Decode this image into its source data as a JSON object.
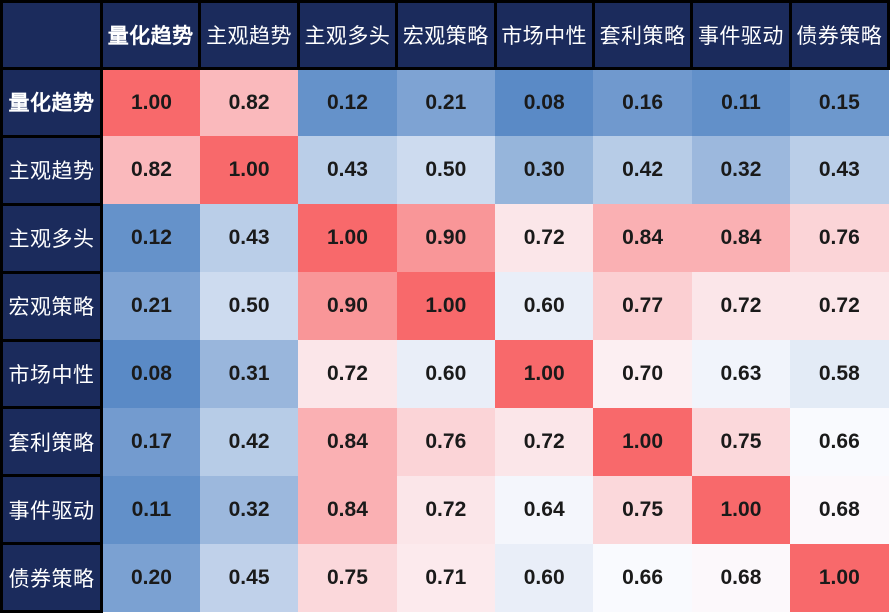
{
  "chart_data": {
    "type": "heatmap",
    "title": "",
    "categories": [
      "量化趋势",
      "主观趋势",
      "主观多头",
      "宏观策略",
      "市场中性",
      "套利策略",
      "事件驱动",
      "债券策略"
    ],
    "matrix": [
      [
        1.0,
        0.82,
        0.12,
        0.21,
        0.08,
        0.16,
        0.11,
        0.15
      ],
      [
        0.82,
        1.0,
        0.43,
        0.5,
        0.3,
        0.42,
        0.32,
        0.43
      ],
      [
        0.12,
        0.43,
        1.0,
        0.9,
        0.72,
        0.84,
        0.84,
        0.76
      ],
      [
        0.21,
        0.5,
        0.9,
        1.0,
        0.6,
        0.77,
        0.72,
        0.72
      ],
      [
        0.08,
        0.31,
        0.72,
        0.6,
        1.0,
        0.7,
        0.63,
        0.58
      ],
      [
        0.17,
        0.42,
        0.84,
        0.76,
        0.72,
        1.0,
        0.75,
        0.66
      ],
      [
        0.11,
        0.32,
        0.84,
        0.72,
        0.64,
        0.75,
        1.0,
        0.68
      ],
      [
        0.2,
        0.45,
        0.75,
        0.71,
        0.6,
        0.66,
        0.68,
        1.0
      ]
    ],
    "value_decimals": 2,
    "colormap": {
      "type": "3-color-scale",
      "min_value": 0.08,
      "mid_value": 0.67,
      "max_value": 1.0,
      "min_color": "#5A8AC6",
      "mid_color": "#FCFCFF",
      "max_color": "#F8696B"
    },
    "header_bg_color": "#1B2B5C",
    "header_text_color": "#FFFFFF",
    "grid_border_color": "#000000",
    "cell_text_color": "#1A1A1A",
    "legend": "none",
    "grid": "off"
  }
}
